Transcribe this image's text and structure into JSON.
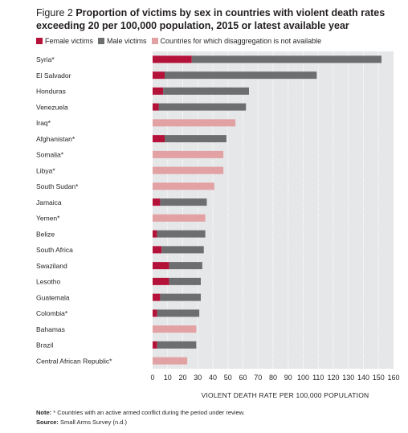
{
  "figure": {
    "label": "Figure 2",
    "title": "Proportion of victims by sex in countries with violent death rates exceeding 20 per 100,000 population, 2015 or latest available year"
  },
  "legend": [
    {
      "label": "Female victims",
      "color": "#b5123a"
    },
    {
      "label": "Male victims",
      "color": "#6d6e70"
    },
    {
      "label": "Countries for which disaggregation is not available",
      "color": "#e2a1a3"
    }
  ],
  "chart_data": {
    "type": "bar",
    "orientation": "horizontal",
    "stacked": true,
    "xlabel": "VIOLENT DEATH RATE PER 100,000 POPULATION",
    "xlim": [
      0,
      160
    ],
    "xticks": [
      0,
      10,
      20,
      30,
      40,
      50,
      60,
      70,
      80,
      90,
      100,
      110,
      120,
      130,
      140,
      150,
      160
    ],
    "grid": "vertical-dotted",
    "categories": [
      "Syria*",
      "El Salvador",
      "Honduras",
      "Venezuela",
      "Iraq*",
      "Afghanistan*",
      "Somalia*",
      "Libya*",
      "South Sudan*",
      "Jamaica",
      "Yemen*",
      "Belize",
      "South Africa",
      "Swaziland",
      "Lesotho",
      "Guatemala",
      "Colombia*",
      "Bahamas",
      "Brazil",
      "Central African Republic*"
    ],
    "series": [
      {
        "name": "Female victims",
        "color": "#b5123a",
        "values": [
          26,
          8,
          7,
          4,
          null,
          8,
          null,
          null,
          null,
          5,
          null,
          3,
          6,
          11,
          11,
          5,
          3,
          null,
          3,
          null
        ]
      },
      {
        "name": "Male victims",
        "color": "#6d6e70",
        "values": [
          126,
          101,
          57,
          58,
          null,
          41,
          null,
          null,
          null,
          31,
          null,
          32,
          28,
          22,
          21,
          27,
          28,
          null,
          26,
          null
        ]
      },
      {
        "name": "Countries for which disaggregation is not available",
        "color": "#e2a1a3",
        "values": [
          null,
          null,
          null,
          null,
          55,
          null,
          47,
          47,
          41,
          null,
          35,
          null,
          null,
          null,
          null,
          null,
          null,
          29,
          null,
          23
        ]
      }
    ]
  },
  "note": {
    "label": "Note:",
    "text": " * Countries with an active armed conflict during the period under review.",
    "source_label": "Source:",
    "source_text": " Small Arms Survey (n.d.)"
  }
}
